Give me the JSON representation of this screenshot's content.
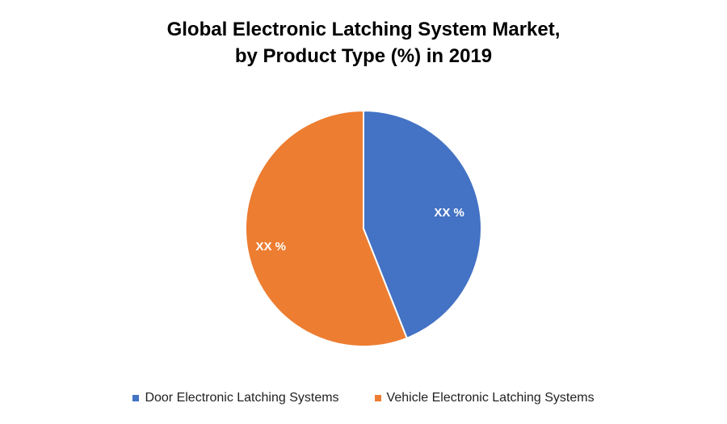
{
  "chart_data": {
    "type": "pie",
    "title_line1": "Global Electronic Latching System Market,",
    "title_line2": "by Product Type (%) in 2019",
    "legend_position": "bottom",
    "slices": [
      {
        "name": "Door Electronic Latching Systems",
        "value": 44,
        "label": "XX %",
        "color": "#4472C4"
      },
      {
        "name": "Vehicle Electronic Latching Systems",
        "value": 56,
        "label": "XX %",
        "color": "#ED7D31"
      }
    ]
  }
}
